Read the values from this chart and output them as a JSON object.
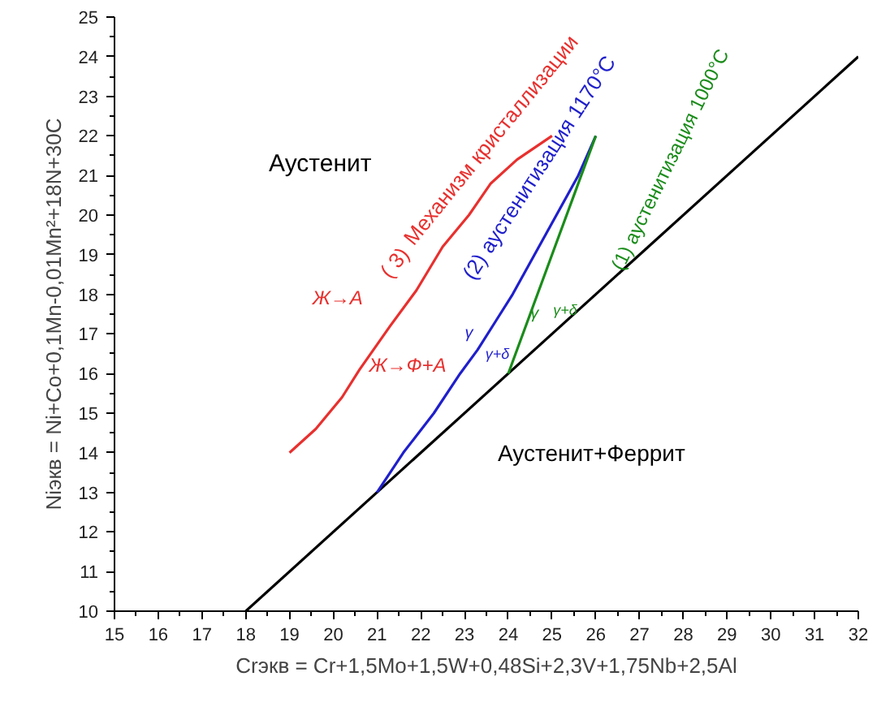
{
  "chart_data": {
    "type": "line",
    "xlabel": "Crэкв = Cr+1,5Mo+1,5W+0,48Si+2,3V+1,75Nb+2,5Al",
    "ylabel": "Niэкв = Ni+Co+0,1Mn-0,01Mn²+18N+30C",
    "xlim": [
      15,
      32
    ],
    "xticks": [
      15,
      16,
      17,
      18,
      19,
      20,
      21,
      22,
      23,
      24,
      25,
      26,
      27,
      28,
      29,
      30,
      31,
      32
    ],
    "ylim": [
      10,
      25
    ],
    "yticks": [
      10,
      11,
      12,
      13,
      14,
      15,
      16,
      17,
      18,
      19,
      20,
      21,
      22,
      23,
      24,
      25
    ],
    "grid": false,
    "marker": "none",
    "line_style": "solid",
    "series": [
      {
        "color": "#000000",
        "x": [
          18,
          32
        ],
        "values": [
          10,
          24
        ]
      },
      {
        "color": "#e8302e",
        "x": [
          19,
          19.6,
          20.2,
          20.6,
          21.3,
          21.9,
          22.5,
          23.1,
          23.6,
          24.2,
          25
        ],
        "values": [
          14,
          14.6,
          15.4,
          16.1,
          17.2,
          18.1,
          19.2,
          20,
          20.8,
          21.4,
          22
        ]
      },
      {
        "color": "#1f1fcc",
        "x": [
          21,
          21.6,
          22.3,
          22.9,
          23.3,
          23.7,
          24.1,
          24.6,
          25.1,
          25.6,
          26
        ],
        "values": [
          13,
          14,
          15,
          16,
          16.6,
          17.3,
          18,
          19,
          20,
          21,
          22
        ]
      },
      {
        "color": "#1a8c1a",
        "x": [
          24,
          24.5,
          25,
          25.5,
          26
        ],
        "values": [
          16,
          17.5,
          19,
          20.5,
          22
        ]
      }
    ],
    "annotations": [
      "Аустенит",
      "Аустенит+Феррит",
      "Механизм кристаллизации",
      "( 3)",
      "Ж→А",
      "Ж→Ф+А",
      "(2) аустенитизация 1170°С",
      "(1) аустенитизация 1000°С",
      "γ",
      "γ+δ",
      "γ",
      "γ+δ"
    ]
  }
}
